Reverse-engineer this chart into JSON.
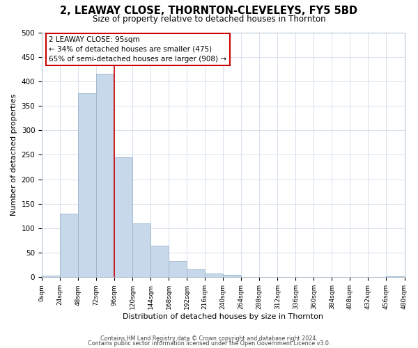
{
  "title": "2, LEAWAY CLOSE, THORNTON-CLEVELEYS, FY5 5BD",
  "subtitle": "Size of property relative to detached houses in Thornton",
  "xlabel": "Distribution of detached houses by size in Thornton",
  "ylabel": "Number of detached properties",
  "bar_color": "#c8d8eb",
  "bar_edge_color": "#9ab4cc",
  "bin_edges": [
    0,
    24,
    48,
    72,
    96,
    120,
    144,
    168,
    192,
    216,
    240,
    264,
    288,
    312,
    336,
    360,
    384,
    408,
    432,
    456,
    480
  ],
  "bar_heights": [
    3,
    130,
    375,
    415,
    245,
    110,
    65,
    33,
    16,
    7,
    5,
    0,
    0,
    0,
    0,
    0,
    0,
    0,
    0,
    2
  ],
  "tick_labels": [
    "0sqm",
    "24sqm",
    "48sqm",
    "72sqm",
    "96sqm",
    "120sqm",
    "144sqm",
    "168sqm",
    "192sqm",
    "216sqm",
    "240sqm",
    "264sqm",
    "288sqm",
    "312sqm",
    "336sqm",
    "360sqm",
    "384sqm",
    "408sqm",
    "432sqm",
    "456sqm",
    "480sqm"
  ],
  "ylim": [
    0,
    500
  ],
  "yticks": [
    0,
    50,
    100,
    150,
    200,
    250,
    300,
    350,
    400,
    450,
    500
  ],
  "property_label": "2 LEAWAY CLOSE: 95sqm",
  "annotation_line1": "← 34% of detached houses are smaller (475)",
  "annotation_line2": "65% of semi-detached houses are larger (908) →",
  "vline_x": 96,
  "vline_color": "#cc0000",
  "footer_line1": "Contains HM Land Registry data © Crown copyright and database right 2024.",
  "footer_line2": "Contains public sector information licensed under the Open Government Licence v3.0.",
  "background_color": "#ffffff",
  "grid_color": "#d0dcea"
}
